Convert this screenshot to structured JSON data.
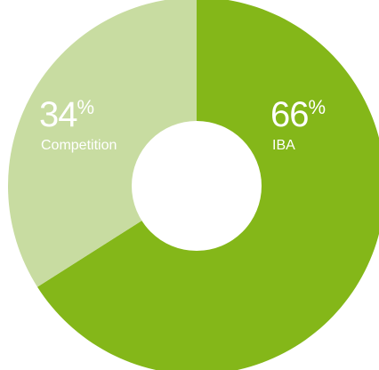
{
  "chart_data": {
    "type": "pie",
    "variant": "donut",
    "title": "",
    "slices": [
      {
        "label": "IBA",
        "value": 66,
        "percent_text": "66",
        "unit": "%",
        "color": "#84b719"
      },
      {
        "label": "Competition",
        "value": 34,
        "percent_text": "34",
        "unit": "%",
        "color": "#c8dca1"
      }
    ],
    "start_angle_deg": 0,
    "direction": "clockwise",
    "center_hole_color": "#ffffff",
    "label_color": "#ffffff"
  }
}
